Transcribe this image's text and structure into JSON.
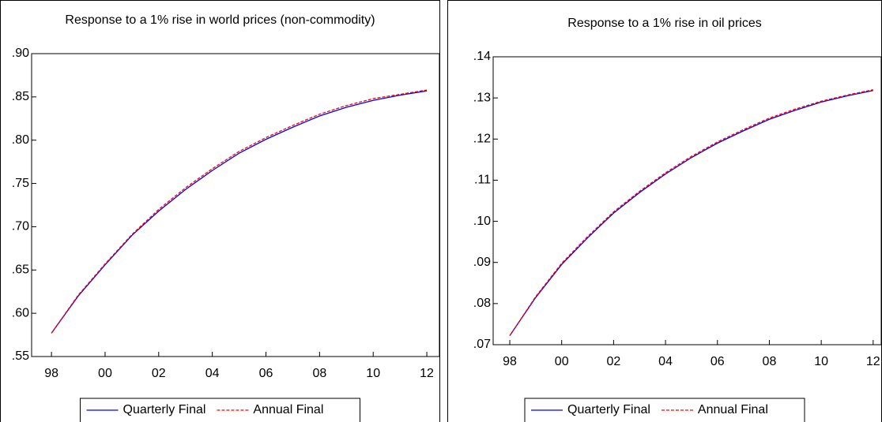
{
  "chart_data": [
    {
      "type": "line",
      "title": "Response to a 1% rise in world prices (non-commodity)",
      "x": [
        1998,
        1999,
        2000,
        2001,
        2002,
        2003,
        2004,
        2005,
        2006,
        2007,
        2008,
        2009,
        2010,
        2011,
        2012
      ],
      "series": [
        {
          "name": "Quarterly Final",
          "color": "#0000ff",
          "values": [
            0.577,
            0.62,
            0.656,
            0.69,
            0.718,
            0.743,
            0.765,
            0.785,
            0.801,
            0.815,
            0.828,
            0.838,
            0.846,
            0.852,
            0.857
          ]
        },
        {
          "name": "Annual Final",
          "color": "#ff0000",
          "values": [
            0.577,
            0.621,
            0.657,
            0.691,
            0.72,
            0.745,
            0.767,
            0.787,
            0.803,
            0.817,
            0.83,
            0.84,
            0.848,
            0.853,
            0.858
          ]
        }
      ],
      "xlim": [
        1997.26,
        2012.47
      ],
      "ylim": [
        0.55,
        0.9
      ],
      "xticks": [
        {
          "value": 1998,
          "label": "98"
        },
        {
          "value": 2000,
          "label": "00"
        },
        {
          "value": 2002,
          "label": "02"
        },
        {
          "value": 2004,
          "label": "04"
        },
        {
          "value": 2006,
          "label": "06"
        },
        {
          "value": 2008,
          "label": "08"
        },
        {
          "value": 2010,
          "label": "10"
        },
        {
          "value": 2012,
          "label": "12"
        }
      ],
      "yticks": [
        {
          "value": 0.55,
          "label": ".55"
        },
        {
          "value": 0.6,
          "label": ".60"
        },
        {
          "value": 0.65,
          "label": ".65"
        },
        {
          "value": 0.7,
          "label": ".70"
        },
        {
          "value": 0.75,
          "label": ".75"
        },
        {
          "value": 0.8,
          "label": ".80"
        },
        {
          "value": 0.85,
          "label": ".85"
        },
        {
          "value": 0.9,
          "label": ".90"
        }
      ],
      "legend": "bottom"
    },
    {
      "type": "line",
      "title": "Response to a 1% rise in oil prices",
      "x": [
        1998,
        1999,
        2000,
        2001,
        2002,
        2003,
        2004,
        2005,
        2006,
        2007,
        2008,
        2009,
        2010,
        2011,
        2012
      ],
      "series": [
        {
          "name": "Quarterly Final",
          "color": "#0000ff",
          "values": [
            0.0722,
            0.0815,
            0.0895,
            0.096,
            0.102,
            0.107,
            0.1115,
            0.1155,
            0.119,
            0.122,
            0.1248,
            0.127,
            0.129,
            0.1305,
            0.1318
          ]
        },
        {
          "name": "Annual Final",
          "color": "#ff0000",
          "values": [
            0.0722,
            0.0817,
            0.0898,
            0.0963,
            0.1023,
            0.1073,
            0.1118,
            0.1158,
            0.1193,
            0.1223,
            0.1251,
            0.1273,
            0.1292,
            0.1307,
            0.132
          ]
        }
      ],
      "xlim": [
        1997.36,
        2012.31
      ],
      "ylim": [
        0.07,
        0.14
      ],
      "xticks": [
        {
          "value": 1998,
          "label": "98"
        },
        {
          "value": 2000,
          "label": "00"
        },
        {
          "value": 2002,
          "label": "02"
        },
        {
          "value": 2004,
          "label": "04"
        },
        {
          "value": 2006,
          "label": "06"
        },
        {
          "value": 2008,
          "label": "08"
        },
        {
          "value": 2010,
          "label": "10"
        },
        {
          "value": 2012,
          "label": "12"
        }
      ],
      "yticks": [
        {
          "value": 0.07,
          "label": ".07"
        },
        {
          "value": 0.08,
          "label": ".08"
        },
        {
          "value": 0.09,
          "label": ".09"
        },
        {
          "value": 0.1,
          "label": ".10"
        },
        {
          "value": 0.11,
          "label": ".11"
        },
        {
          "value": 0.12,
          "label": ".12"
        },
        {
          "value": 0.13,
          "label": ".13"
        },
        {
          "value": 0.14,
          "label": ".14"
        }
      ],
      "legend": "bottom"
    }
  ]
}
